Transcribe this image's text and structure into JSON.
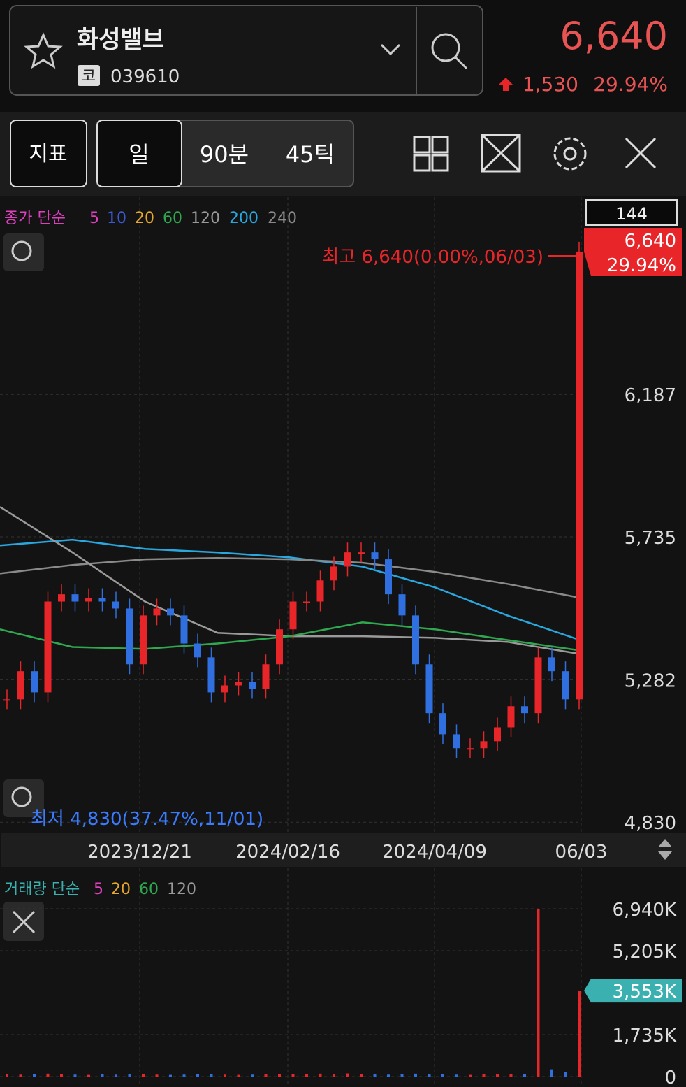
{
  "header": {
    "name": "화성밸브",
    "market": "코",
    "code": "039610",
    "price": "6,640",
    "change": "1,530",
    "change_pct": "29.94%"
  },
  "toolbar": {
    "indicator": "지표",
    "periods": [
      "일",
      "90분",
      "45틱"
    ]
  },
  "price_chart": {
    "legend_title": "종가 단순",
    "ma_labels": [
      {
        "label": "5",
        "color": "#e040c0"
      },
      {
        "label": "10",
        "color": "#3a5bd9"
      },
      {
        "label": "20",
        "color": "#e8a92a"
      },
      {
        "label": "60",
        "color": "#2fa84f"
      },
      {
        "label": "120",
        "color": "#9a9a9a"
      },
      {
        "label": "200",
        "color": "#29a8e0"
      },
      {
        "label": "240",
        "color": "#8a8a8a"
      }
    ],
    "count": "144",
    "high_label": "최고 6,640(0.00%,06/03)",
    "low_label": "최저 4,830(37.47%,11/01)",
    "last_price": "6,640",
    "last_pct": "29.94%",
    "ylim": [
      4795,
      6795
    ],
    "yticks": [
      {
        "value": 4830,
        "label": "4,830"
      },
      {
        "value": 5282,
        "label": "5,282"
      },
      {
        "value": 5735,
        "label": "5,735"
      },
      {
        "value": 6187,
        "label": "6,187"
      }
    ],
    "dates": [
      "2023/12/21",
      "2024/02/16",
      "2024/04/09",
      "06/03"
    ],
    "up_color": "#e8262a",
    "down_color": "#2f6fe0",
    "closes": [
      5220,
      5309,
      5242,
      5530,
      5553,
      5530,
      5541,
      5530,
      5508,
      5331,
      5486,
      5508,
      5486,
      5397,
      5353,
      5242,
      5264,
      5275,
      5253,
      5331,
      5442,
      5530,
      5530,
      5597,
      5641,
      5686,
      5686,
      5664,
      5553,
      5486,
      5331,
      5176,
      5109,
      5065,
      5065,
      5087,
      5131,
      5198,
      5176,
      5353,
      5309,
      5220,
      6640
    ],
    "lines": [
      {
        "color": "#29a8e0",
        "values": [
          5708,
          5726,
          5697,
          5686,
          5670,
          5641,
          5575,
          5486,
          5408
        ]
      },
      {
        "color": "#8a8a8a",
        "values": [
          5619,
          5646,
          5664,
          5668,
          5664,
          5653,
          5624,
          5586,
          5542
        ]
      },
      {
        "color": "#9a9a9a",
        "values": [
          5830,
          5686,
          5530,
          5431,
          5420,
          5420,
          5415,
          5402,
          5364
        ]
      },
      {
        "color": "#2fa84f",
        "values": [
          5442,
          5386,
          5380,
          5397,
          5420,
          5464,
          5442,
          5408,
          5375
        ]
      }
    ]
  },
  "volume_chart": {
    "legend_title": "거래량 단순",
    "ma_labels": [
      {
        "label": "5",
        "color": "#e040c0"
      },
      {
        "label": "20",
        "color": "#e8a92a"
      },
      {
        "label": "60",
        "color": "#2fa84f"
      },
      {
        "label": "120",
        "color": "#9a9a9a"
      }
    ],
    "ylim": [
      0,
      7200
    ],
    "yticks": [
      0,
      {
        "value": 1735,
        "label": "1,735K"
      },
      {
        "value": 5205,
        "label": "5,205K"
      },
      {
        "value": 6940,
        "label": "6,940K"
      }
    ],
    "current": {
      "value": 3553,
      "label": "3,553K"
    },
    "values": [
      90,
      80,
      100,
      120,
      90,
      80,
      70,
      90,
      80,
      110,
      90,
      80,
      70,
      80,
      90,
      100,
      80,
      70,
      80,
      90,
      110,
      100,
      90,
      120,
      110,
      130,
      100,
      90,
      80,
      110,
      120,
      100,
      90,
      80,
      70,
      90,
      100,
      110,
      90,
      6940,
      300,
      200,
      3553
    ]
  }
}
